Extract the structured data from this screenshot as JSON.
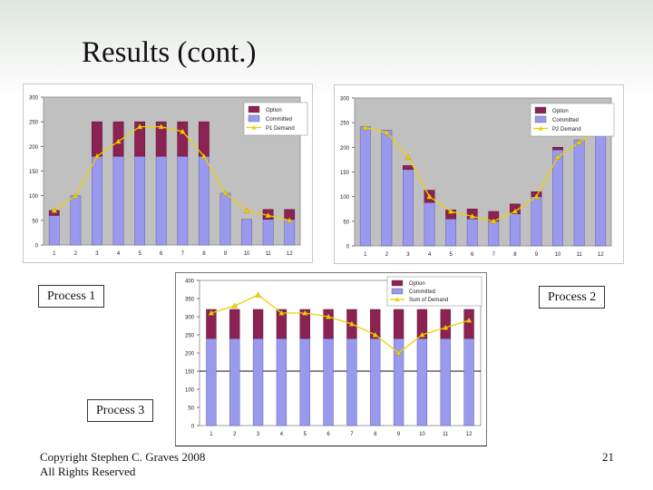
{
  "slide": {
    "title": "Results (cont.)",
    "labels": {
      "process1": "Process 1",
      "process2": "Process 2",
      "process3": "Process 3"
    },
    "footer_line1": "Copyright Stephen C. Graves 2008",
    "footer_line2": "All Rights Reserved",
    "page_number": "21"
  },
  "colors": {
    "option": "#8b2252",
    "committed": "#9999ee",
    "demand": "#f0d000",
    "plot_bg": "#c0c0c0",
    "plot_bg_p3": "#ffffff"
  },
  "chart_data": [
    {
      "type": "bar",
      "stacked": true,
      "categories": [
        "1",
        "2",
        "3",
        "4",
        "5",
        "6",
        "7",
        "8",
        "9",
        "10",
        "11",
        "12"
      ],
      "ylim": [
        0,
        300
      ],
      "yticks": [
        0,
        50,
        100,
        150,
        200,
        250,
        300
      ],
      "legend_position": "top-right",
      "plot_background": "grey",
      "series": [
        {
          "name": "Option",
          "kind": "bar",
          "values": [
            10,
            0,
            70,
            70,
            70,
            70,
            70,
            70,
            0,
            0,
            20,
            20
          ]
        },
        {
          "name": "Committed",
          "kind": "bar",
          "values": [
            60,
            100,
            180,
            180,
            180,
            180,
            180,
            180,
            105,
            52,
            52,
            52
          ]
        },
        {
          "name": "P1 Demand",
          "kind": "line",
          "values": [
            70,
            100,
            180,
            210,
            240,
            240,
            230,
            180,
            105,
            70,
            60,
            50
          ]
        }
      ]
    },
    {
      "type": "bar",
      "stacked": true,
      "categories": [
        "1",
        "2",
        "3",
        "4",
        "5",
        "6",
        "7",
        "8",
        "9",
        "10",
        "11",
        "12"
      ],
      "ylim": [
        0,
        300
      ],
      "yticks": [
        0,
        50,
        100,
        150,
        200,
        250,
        300
      ],
      "legend_position": "top-right",
      "plot_background": "grey",
      "series": [
        {
          "name": "Option",
          "kind": "bar",
          "values": [
            0,
            0,
            8,
            25,
            18,
            20,
            20,
            20,
            10,
            5,
            0,
            10
          ]
        },
        {
          "name": "Committed",
          "kind": "bar",
          "values": [
            242,
            235,
            155,
            88,
            55,
            55,
            50,
            65,
            100,
            195,
            215,
            237
          ]
        },
        {
          "name": "P2 Demand",
          "kind": "line",
          "values": [
            240,
            230,
            180,
            100,
            70,
            60,
            50,
            70,
            100,
            180,
            210,
            240
          ]
        }
      ]
    },
    {
      "type": "bar",
      "stacked": true,
      "categories": [
        "1",
        "2",
        "3",
        "4",
        "5",
        "6",
        "7",
        "8",
        "9",
        "10",
        "11",
        "12"
      ],
      "ylim": [
        0,
        400
      ],
      "yticks": [
        0,
        50,
        100,
        150,
        200,
        250,
        300,
        350,
        400
      ],
      "legend_position": "top-right",
      "plot_background": "white",
      "reference_line": 150,
      "series": [
        {
          "name": "Option",
          "kind": "bar",
          "values": [
            80,
            80,
            80,
            80,
            80,
            80,
            80,
            80,
            80,
            80,
            80,
            80
          ]
        },
        {
          "name": "Committed",
          "kind": "bar",
          "values": [
            240,
            240,
            240,
            240,
            240,
            240,
            240,
            240,
            240,
            240,
            240,
            240
          ]
        },
        {
          "name": "Sum of Demand",
          "kind": "line",
          "values": [
            310,
            330,
            360,
            310,
            310,
            300,
            280,
            250,
            200,
            250,
            270,
            290
          ]
        }
      ]
    }
  ]
}
